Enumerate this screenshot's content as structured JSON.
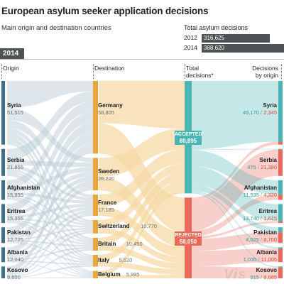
{
  "title": "European asylum seeker application decisions",
  "subtitle": "Main origin and destination countries",
  "totals": {
    "label": "Total asylum decisions",
    "rows": [
      {
        "year": "2012",
        "value": 316625,
        "display": "316,625"
      },
      {
        "year": "2014",
        "value": 388620,
        "display": "388,620"
      }
    ]
  },
  "year_tag": "2014",
  "headers": {
    "origin": "Origin",
    "destination": "Destination",
    "total_l1": "Total",
    "total_l2": "decisions*",
    "dec_l1": "Decisions",
    "dec_l2": "by origin"
  },
  "colors": {
    "origin_bar": "#3d6f86",
    "destination_bar": "#e8a53a",
    "destination_flow": "#f6d9a6",
    "accepted": "#4bb5b3",
    "rejected": "#e9695a",
    "flow_grey": "#b6c8d3",
    "total_bar": "#4f5254"
  },
  "watermark": "Vis",
  "chart_data": {
    "type": "sankey",
    "year": "2014",
    "origins": [
      {
        "name": "Syria",
        "value": 51515,
        "display": "51,515"
      },
      {
        "name": "Serbia",
        "value": 21855,
        "display": "21,855"
      },
      {
        "name": "Afghanistan",
        "value": 15855,
        "display": "15,855"
      },
      {
        "name": "Eritrea",
        "value": 15355,
        "display": "15,355"
      },
      {
        "name": "Pakistan",
        "value": 12725,
        "display": "12,725"
      },
      {
        "name": "Albania",
        "value": 12040,
        "display": "12,040"
      },
      {
        "name": "Kosovo",
        "value": 9600,
        "display": "9,600"
      }
    ],
    "destinations": [
      {
        "name": "Germany",
        "value": 58805,
        "display": "58,805"
      },
      {
        "name": "Sweden",
        "value": 26220,
        "display": "26,220"
      },
      {
        "name": "France",
        "value": 17185,
        "display": "17,185"
      },
      {
        "name": "Switzerland",
        "value": 10770,
        "display": "10,770"
      },
      {
        "name": "Britain",
        "value": 10450,
        "display": "10,450"
      },
      {
        "name": "Italy",
        "value": 9520,
        "display": "9,520"
      },
      {
        "name": "Belgium",
        "value": 5995,
        "display": "5,995"
      }
    ],
    "totals": [
      {
        "name": "ACCEPTED",
        "value": 80895,
        "display": "80,895"
      },
      {
        "name": "REJECTED",
        "value": 58050,
        "display": "58,050"
      }
    ],
    "decisions_by_origin": [
      {
        "name": "Syria",
        "accepted": 49170,
        "rejected": 2345,
        "accepted_display": "49,170",
        "rejected_display": "2,345"
      },
      {
        "name": "Serbia",
        "accepted": 475,
        "rejected": 21380,
        "accepted_display": "475",
        "rejected_display": "21,380"
      },
      {
        "name": "Afghanistan",
        "accepted": 11535,
        "rejected": 4320,
        "accepted_display": "11,535",
        "rejected_display": "4,320"
      },
      {
        "name": "Eritrea",
        "accepted": 13740,
        "rejected": 1615,
        "accepted_display": "13,740",
        "rejected_display": "1,615"
      },
      {
        "name": "Pakistan",
        "accepted": 4025,
        "rejected": 8700,
        "accepted_display": "4,025",
        "rejected_display": "8,700"
      },
      {
        "name": "Albania",
        "accepted": 1035,
        "rejected": 11005,
        "accepted_display": "1,035",
        "rejected_display": "11,005"
      },
      {
        "name": "Kosovo",
        "accepted": 915,
        "rejected": 8685,
        "accepted_display": "915",
        "rejected_display": "8,685"
      }
    ]
  }
}
